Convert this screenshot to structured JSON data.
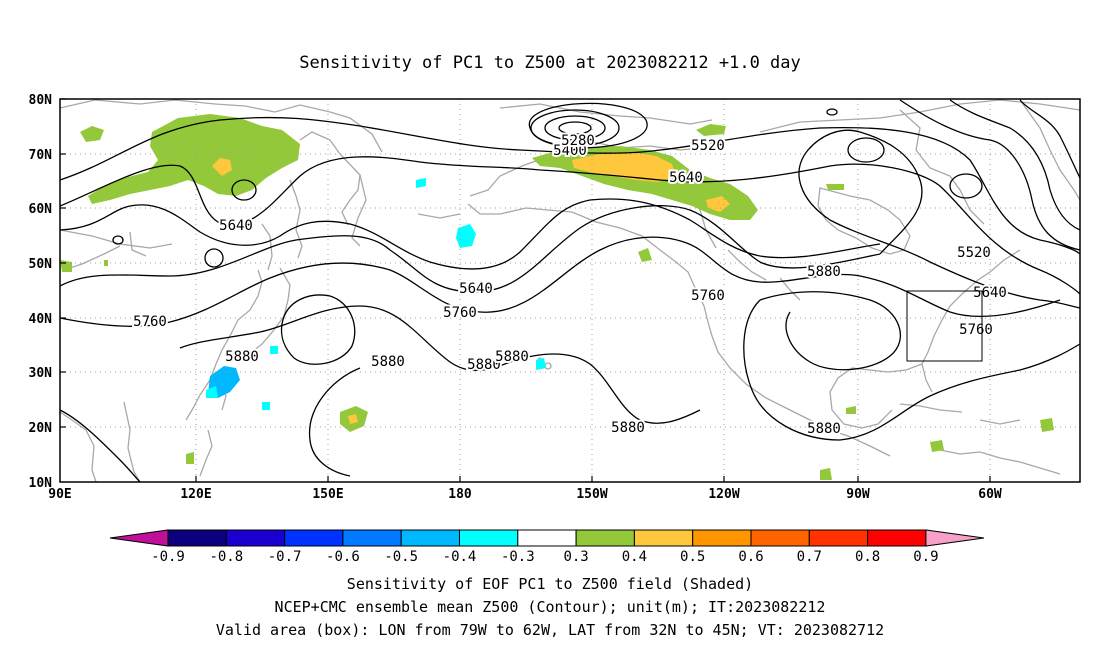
{
  "title": "Sensitivity of PC1 to Z500 at 2023082212 +1.0 day",
  "lat_labels": [
    "80N",
    "70N",
    "60N",
    "50N",
    "40N",
    "30N",
    "20N",
    "10N"
  ],
  "lon_labels": [
    "90E",
    "120E",
    "150E",
    "180",
    "150W",
    "120W",
    "90W",
    "60W"
  ],
  "contour_labels": [
    {
      "text": "5400"
    },
    {
      "text": "5280"
    },
    {
      "text": "5520"
    },
    {
      "text": "5640"
    },
    {
      "text": "5640"
    },
    {
      "text": "5640"
    },
    {
      "text": "5520"
    },
    {
      "text": "5880"
    },
    {
      "text": "5640"
    },
    {
      "text": "5760"
    },
    {
      "text": "5760"
    },
    {
      "text": "5760"
    },
    {
      "text": "5760"
    },
    {
      "text": "5880"
    },
    {
      "text": "5880"
    },
    {
      "text": "5880"
    },
    {
      "text": "5880"
    },
    {
      "text": "5880"
    },
    {
      "text": "5880"
    }
  ],
  "colorbar": {
    "labels": [
      "-0.9",
      "-0.8",
      "-0.7",
      "-0.6",
      "-0.5",
      "-0.4",
      "-0.3",
      "0.3",
      "0.4",
      "0.5",
      "0.6",
      "0.7",
      "0.8",
      "0.9"
    ],
    "colors": {
      "low_arrow": "#c0109a",
      "boxes": [
        "#0b007e",
        "#1a00d0",
        "#0032ff",
        "#0078ff",
        "#00b8ff",
        "#00ffff",
        "#ffffff",
        "#92c83a",
        "#ffc83c",
        "#ff9600",
        "#ff6400",
        "#ff3200",
        "#ff0000"
      ],
      "high_arrow": "#f7a0c8"
    }
  },
  "footer": {
    "line1": "Sensitivity of EOF PC1 to Z500 field (Shaded)",
    "line2": "NCEP+CMC ensemble mean Z500 (Contour); unit(m); IT:2023082212",
    "line3": "Valid area (box): LON from 79W to 62W, LAT from 32N to 45N; VT: 2023082712"
  }
}
